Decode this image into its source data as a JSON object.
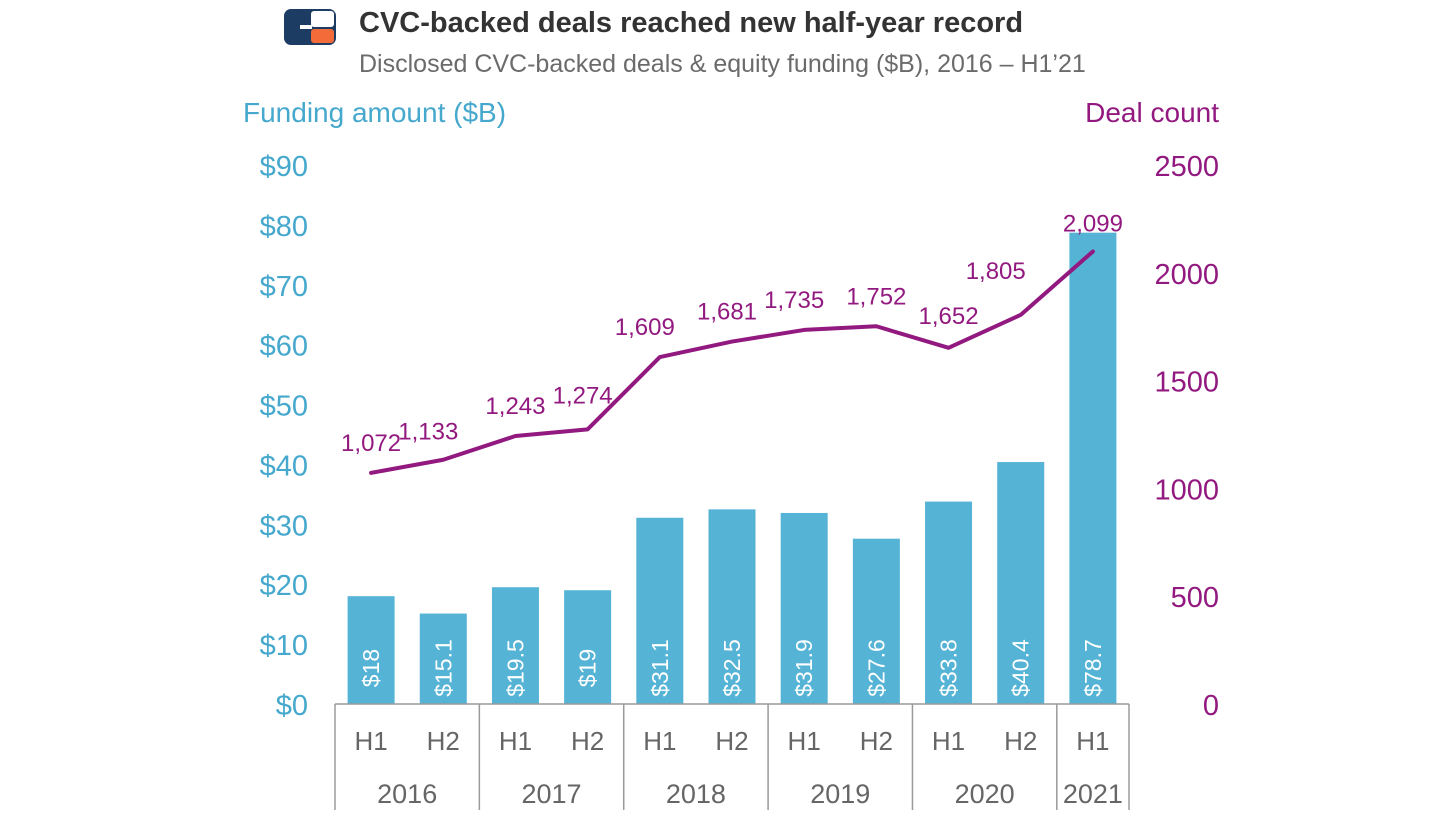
{
  "colors": {
    "bar": "#55b3d6",
    "line": "#92197f",
    "left_axis": "#45a8cc",
    "right_axis": "#92197f",
    "title": "#333333",
    "subtitle": "#6b6b6b",
    "category": "#666666",
    "logo_blue": "#1c3c64",
    "logo_orange": "#f26b38"
  },
  "logo": {
    "icon": "cb-insights-logo-icon"
  },
  "chart_data": {
    "type": "bar",
    "title": "CVC-backed deals reached new half-year record",
    "subtitle": "Disclosed CVC-backed deals & equity funding ($B), 2016 – H1’21",
    "ylabel": "Funding amount ($B)",
    "y2label": "Deal count",
    "ylim": [
      0,
      90
    ],
    "y2lim": [
      0,
      2500
    ],
    "yticks": [
      0,
      10,
      20,
      30,
      40,
      50,
      60,
      70,
      80,
      90
    ],
    "ytick_labels": [
      "$0",
      "$10",
      "$20",
      "$30",
      "$40",
      "$50",
      "$60",
      "$70",
      "$80",
      "$90"
    ],
    "y2ticks": [
      0,
      500,
      1000,
      1500,
      2000,
      2500
    ],
    "y2tick_labels": [
      "0",
      "500",
      "1000",
      "1500",
      "2000",
      "2500"
    ],
    "categories": [
      "H1",
      "H2",
      "H1",
      "H2",
      "H1",
      "H2",
      "H1",
      "H2",
      "H1",
      "H2",
      "H1"
    ],
    "groups": [
      {
        "label": "2016",
        "span": 2
      },
      {
        "label": "2017",
        "span": 2
      },
      {
        "label": "2018",
        "span": 2
      },
      {
        "label": "2019",
        "span": 2
      },
      {
        "label": "2020",
        "span": 2
      },
      {
        "label": "2021",
        "span": 1
      }
    ],
    "series": [
      {
        "name": "Funding amount ($B)",
        "type": "bar",
        "axis": "left",
        "values": [
          18,
          15.1,
          19.5,
          19,
          31.1,
          32.5,
          31.9,
          27.6,
          33.8,
          40.4,
          78.7
        ],
        "labels": [
          "$18",
          "$15.1",
          "$19.5",
          "$19",
          "$31.1",
          "$32.5",
          "$31.9",
          "$27.6",
          "$33.8",
          "$40.4",
          "$78.7"
        ]
      },
      {
        "name": "Deal count",
        "type": "line",
        "axis": "right",
        "values": [
          1072,
          1133,
          1243,
          1274,
          1609,
          1681,
          1735,
          1752,
          1652,
          1805,
          2099
        ],
        "labels": [
          "1,072",
          "1,133",
          "1,243",
          "1,274",
          "1,609",
          "1,681",
          "1,735",
          "1,752",
          "1,652",
          "1,805",
          "2,099"
        ]
      }
    ]
  }
}
